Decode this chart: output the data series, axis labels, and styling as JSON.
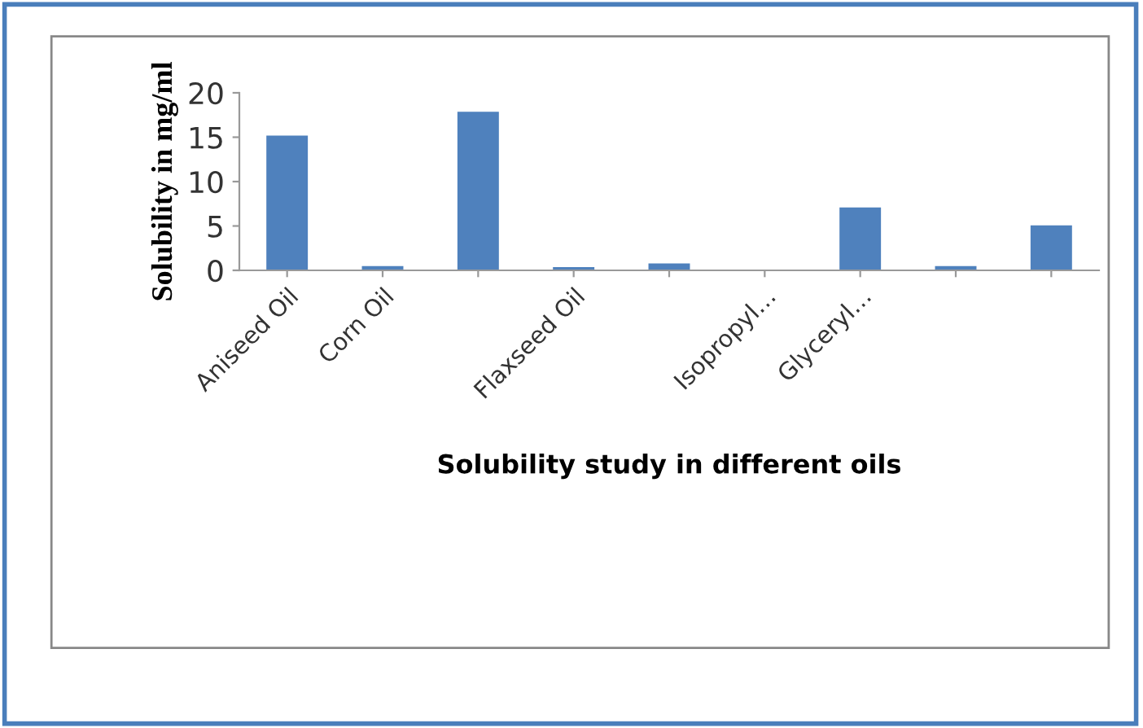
{
  "chart_data": {
    "type": "bar",
    "categories": [
      "Aniseed Oil",
      "Corn Oil",
      null,
      "Flaxseed Oil",
      null,
      "Isopropyl…",
      "Glyceryl…",
      null,
      null
    ],
    "values": [
      15.1,
      0.4,
      17.8,
      0.3,
      0.7,
      0,
      7,
      0.4,
      5
    ],
    "color": "#4f81bd",
    "ylabel": "Solubility in mg/ml",
    "xlabel": "Solubility study in different oils",
    "ylim": [
      0,
      20
    ],
    "yticks": [
      0,
      5,
      10,
      15,
      20
    ],
    "grid": false,
    "legend": false
  }
}
